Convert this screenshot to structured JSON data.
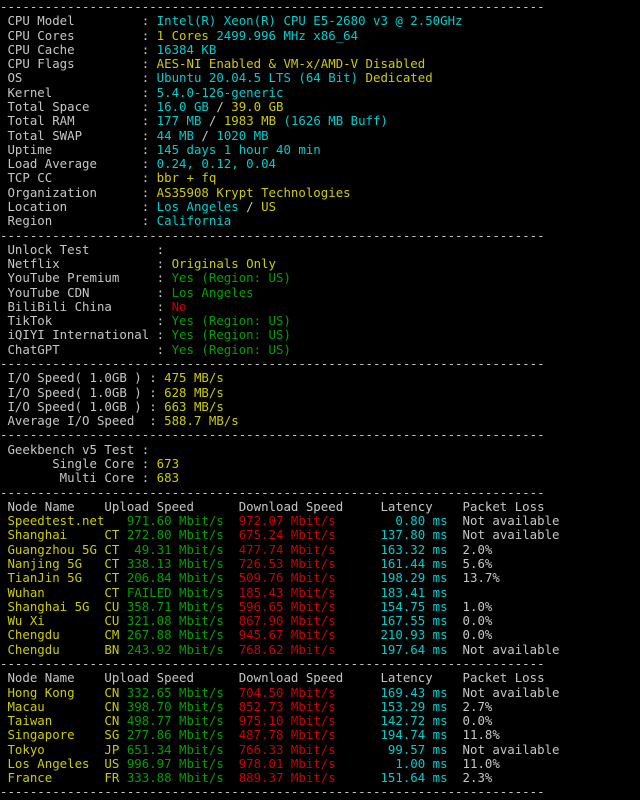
{
  "palette": {
    "background": "#000000",
    "foreground": "#c6c6c6",
    "cyan": "#00cdcd",
    "yellow": "#cccc00",
    "green": "#00a000",
    "red": "#cd0000"
  },
  "separator": "-------------------------------------------------------------------------",
  "info_sections": [
    {
      "id": "system-info",
      "rows": [
        {
          "label": "CPU Model",
          "segments": [
            [
              "cyan",
              "Intel(R) Xeon(R) CPU E5-2680 v3 @ 2.50GHz"
            ]
          ]
        },
        {
          "label": "CPU Cores",
          "segments": [
            [
              "yellow",
              "1 Cores"
            ],
            [
              "cyan",
              " 2499.996 MHz x86_64"
            ]
          ]
        },
        {
          "label": "CPU Cache",
          "segments": [
            [
              "cyan",
              "16384 KB"
            ]
          ]
        },
        {
          "label": "CPU Flags",
          "segments": [
            [
              "yellow",
              "AES-NI Enabled & VM-x/AMD-V Disabled"
            ]
          ]
        },
        {
          "label": "OS",
          "segments": [
            [
              "cyan",
              "Ubuntu 20.04.5 LTS (64 Bit)"
            ],
            [
              "yellow",
              " Dedicated"
            ]
          ]
        },
        {
          "label": "Kernel",
          "segments": [
            [
              "cyan",
              "5.4.0-126-generic"
            ]
          ]
        },
        {
          "label": "Total Space",
          "segments": [
            [
              "cyan",
              "16.0 GB"
            ],
            [
              "default",
              " / "
            ],
            [
              "yellow",
              "39.0 GB"
            ]
          ]
        },
        {
          "label": "Total RAM",
          "segments": [
            [
              "cyan",
              "177 MB"
            ],
            [
              "default",
              " / "
            ],
            [
              "yellow",
              "1983 MB"
            ],
            [
              "cyan",
              " (1626 MB Buff)"
            ]
          ]
        },
        {
          "label": "Total SWAP",
          "segments": [
            [
              "cyan",
              "44 MB"
            ],
            [
              "default",
              " / "
            ],
            [
              "cyan",
              "1020 MB"
            ]
          ]
        },
        {
          "label": "Uptime",
          "segments": [
            [
              "cyan",
              "145 days 1 hour 40 min"
            ]
          ]
        },
        {
          "label": "Load Average",
          "segments": [
            [
              "cyan",
              "0.24, 0.12, 0.04"
            ]
          ]
        },
        {
          "label": "TCP CC",
          "segments": [
            [
              "yellow",
              "bbr + fq"
            ]
          ]
        },
        {
          "label": "Organization",
          "segments": [
            [
              "yellow",
              "AS35908 Krypt Technologies"
            ]
          ]
        },
        {
          "label": "Location",
          "segments": [
            [
              "cyan",
              "Los Angeles"
            ],
            [
              "default",
              " / "
            ],
            [
              "yellow",
              "US"
            ]
          ]
        },
        {
          "label": "Region",
          "segments": [
            [
              "cyan",
              "California"
            ]
          ]
        }
      ]
    },
    {
      "id": "unlock-test",
      "rows": [
        {
          "label": "Unlock Test",
          "segments": []
        },
        {
          "label": "Netflix",
          "segments": [
            [
              "yellow",
              "Originals Only"
            ]
          ]
        },
        {
          "label": "YouTube Premium",
          "segments": [
            [
              "green",
              "Yes (Region: US)"
            ]
          ]
        },
        {
          "label": "YouTube CDN",
          "segments": [
            [
              "green",
              "Los Angeles"
            ]
          ]
        },
        {
          "label": "BiliBili China",
          "segments": [
            [
              "red",
              "No"
            ]
          ]
        },
        {
          "label": "TikTok",
          "segments": [
            [
              "green",
              "Yes (Region: US)"
            ]
          ]
        },
        {
          "label": "iQIYI International",
          "segments": [
            [
              "green",
              "Yes (Region: US)"
            ]
          ]
        },
        {
          "label": "ChatGPT",
          "segments": [
            [
              "green",
              "Yes (Region: US)"
            ]
          ]
        }
      ]
    },
    {
      "id": "io-speed",
      "rows": [
        {
          "label": "I/O Speed( 1.0GB )",
          "segments": [
            [
              "yellow",
              "475 MB/s"
            ]
          ]
        },
        {
          "label": "I/O Speed( 1.0GB )",
          "segments": [
            [
              "yellow",
              "628 MB/s"
            ]
          ]
        },
        {
          "label": "I/O Speed( 1.0GB )",
          "segments": [
            [
              "yellow",
              "663 MB/s"
            ]
          ]
        },
        {
          "label": "Average I/O Speed",
          "segments": [
            [
              "yellow",
              "588.7 MB/s"
            ]
          ]
        }
      ]
    },
    {
      "id": "geekbench",
      "rows": [
        {
          "label": "Geekbench v5 Test",
          "segments": []
        },
        {
          "label": "Single Core",
          "align": "right",
          "segments": [
            [
              "yellow",
              "673"
            ]
          ]
        },
        {
          "label": "Multi Core",
          "align": "right",
          "segments": [
            [
              "yellow",
              "683"
            ]
          ]
        }
      ]
    }
  ],
  "speedtest": {
    "header": {
      "node": "Node Name",
      "upload": "Upload Speed",
      "download": "Download Speed",
      "latency": "Latency",
      "loss": "Packet Loss"
    },
    "units": {
      "speed": "Mbit/s",
      "latency": "ms"
    },
    "tables": [
      {
        "rows": [
          {
            "name": "Speedtest.net",
            "code": "",
            "upload": "971.60",
            "download": "972.07",
            "latency": "0.80",
            "loss": "Not available"
          },
          {
            "name": "Shanghai",
            "code": "CT",
            "upload": "272.80",
            "download": "675.24",
            "latency": "137.80",
            "loss": "Not available"
          },
          {
            "name": "Guangzhou 5G",
            "code": "CT",
            "upload": "49.31",
            "download": "477.74",
            "latency": "163.32",
            "loss": "2.0%"
          },
          {
            "name": "Nanjing 5G",
            "code": "CT",
            "upload": "338.13",
            "download": "726.53",
            "latency": "161.44",
            "loss": "5.6%"
          },
          {
            "name": "TianJin 5G",
            "code": "CT",
            "upload": "206.84",
            "download": "509.76",
            "latency": "198.29",
            "loss": "13.7%"
          },
          {
            "name": "Wuhan",
            "code": "CT",
            "upload": "FAILED",
            "download": "185.43",
            "latency": "183.41",
            "loss": ""
          },
          {
            "name": "Shanghai 5G",
            "code": "CU",
            "upload": "358.71",
            "download": "596.65",
            "latency": "154.75",
            "loss": "1.0%"
          },
          {
            "name": "Wu Xi",
            "code": "CU",
            "upload": "321.08",
            "download": "867.90",
            "latency": "167.55",
            "loss": "0.0%"
          },
          {
            "name": "Chengdu",
            "code": "CM",
            "upload": "267.88",
            "download": "945.67",
            "latency": "210.93",
            "loss": "0.0%"
          },
          {
            "name": "Chengdu",
            "code": "BN",
            "upload": "243.92",
            "download": "768.62",
            "latency": "197.64",
            "loss": "Not available"
          }
        ]
      },
      {
        "rows": [
          {
            "name": "Hong Kong",
            "code": "CN",
            "upload": "332.65",
            "download": "704.50",
            "latency": "169.43",
            "loss": "Not available"
          },
          {
            "name": "Macau",
            "code": "CN",
            "upload": "398.70",
            "download": "852.73",
            "latency": "153.29",
            "loss": "2.7%"
          },
          {
            "name": "Taiwan",
            "code": "CN",
            "upload": "498.77",
            "download": "975.10",
            "latency": "142.72",
            "loss": "0.0%"
          },
          {
            "name": "Singapore",
            "code": "SG",
            "upload": "277.86",
            "download": "487.78",
            "latency": "194.74",
            "loss": "11.8%"
          },
          {
            "name": "Tokyo",
            "code": "JP",
            "upload": "651.34",
            "download": "766.33",
            "latency": "99.57",
            "loss": "Not available"
          },
          {
            "name": "Los Angeles",
            "code": "US",
            "upload": "996.97",
            "download": "978.01",
            "latency": "1.00",
            "loss": "11.0%"
          },
          {
            "name": "France",
            "code": "FR",
            "upload": "333.88",
            "download": "889.37",
            "latency": "151.64",
            "loss": "2.3%"
          }
        ]
      }
    ]
  }
}
